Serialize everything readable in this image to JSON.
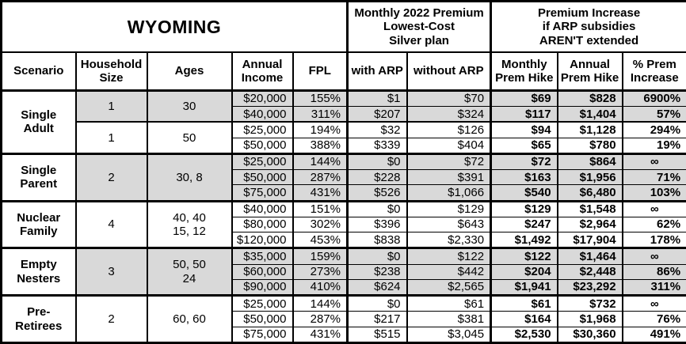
{
  "table": {
    "title": "WYOMING",
    "sections": {
      "premium": "Monthly 2022 Premium\nLowest-Cost\nSilver plan",
      "increase": "Premium Increase\nif ARP subsidies\nAREN'T extended"
    },
    "columns": [
      "Scenario",
      "Household\nSize",
      "Ages",
      "Annual\nIncome",
      "FPL",
      "with ARP",
      "without ARP",
      "Monthly\nPrem Hike",
      "Annual\nPrem Hike",
      "% Prem\nIncrease"
    ],
    "colors": {
      "shaded_row": "#d9d9d9",
      "border": "#000000",
      "background": "#ffffff"
    },
    "groups": [
      {
        "scenario": "Single\nAdult",
        "subgroups": [
          {
            "household_size": "1",
            "ages": "30",
            "shaded": true,
            "rows": [
              {
                "income": "$20,000",
                "fpl": "155%",
                "with_arp": "$1",
                "without_arp": "$70",
                "monthly_hike": "$69",
                "annual_hike": "$828",
                "pct_increase": "6900%"
              },
              {
                "income": "$40,000",
                "fpl": "311%",
                "with_arp": "$207",
                "without_arp": "$324",
                "monthly_hike": "$117",
                "annual_hike": "$1,404",
                "pct_increase": "57%"
              }
            ]
          },
          {
            "household_size": "1",
            "ages": "50",
            "shaded": false,
            "rows": [
              {
                "income": "$25,000",
                "fpl": "194%",
                "with_arp": "$32",
                "without_arp": "$126",
                "monthly_hike": "$94",
                "annual_hike": "$1,128",
                "pct_increase": "294%"
              },
              {
                "income": "$50,000",
                "fpl": "388%",
                "with_arp": "$339",
                "without_arp": "$404",
                "monthly_hike": "$65",
                "annual_hike": "$780",
                "pct_increase": "19%"
              }
            ]
          }
        ]
      },
      {
        "scenario": "Single\nParent",
        "subgroups": [
          {
            "household_size": "2",
            "ages": "30, 8",
            "shaded": true,
            "rows": [
              {
                "income": "$25,000",
                "fpl": "144%",
                "with_arp": "$0",
                "without_arp": "$72",
                "monthly_hike": "$72",
                "annual_hike": "$864",
                "pct_increase": "∞"
              },
              {
                "income": "$50,000",
                "fpl": "287%",
                "with_arp": "$228",
                "without_arp": "$391",
                "monthly_hike": "$163",
                "annual_hike": "$1,956",
                "pct_increase": "71%"
              },
              {
                "income": "$75,000",
                "fpl": "431%",
                "with_arp": "$526",
                "without_arp": "$1,066",
                "monthly_hike": "$540",
                "annual_hike": "$6,480",
                "pct_increase": "103%"
              }
            ]
          }
        ]
      },
      {
        "scenario": "Nuclear\nFamily",
        "subgroups": [
          {
            "household_size": "4",
            "ages": "40, 40\n15, 12",
            "shaded": false,
            "rows": [
              {
                "income": "$40,000",
                "fpl": "151%",
                "with_arp": "$0",
                "without_arp": "$129",
                "monthly_hike": "$129",
                "annual_hike": "$1,548",
                "pct_increase": "∞"
              },
              {
                "income": "$80,000",
                "fpl": "302%",
                "with_arp": "$396",
                "without_arp": "$643",
                "monthly_hike": "$247",
                "annual_hike": "$2,964",
                "pct_increase": "62%"
              },
              {
                "income": "$120,000",
                "fpl": "453%",
                "with_arp": "$838",
                "without_arp": "$2,330",
                "monthly_hike": "$1,492",
                "annual_hike": "$17,904",
                "pct_increase": "178%"
              }
            ]
          }
        ]
      },
      {
        "scenario": "Empty\nNesters",
        "subgroups": [
          {
            "household_size": "3",
            "ages": "50, 50\n24",
            "shaded": true,
            "rows": [
              {
                "income": "$35,000",
                "fpl": "159%",
                "with_arp": "$0",
                "without_arp": "$122",
                "monthly_hike": "$122",
                "annual_hike": "$1,464",
                "pct_increase": "∞"
              },
              {
                "income": "$60,000",
                "fpl": "273%",
                "with_arp": "$238",
                "without_arp": "$442",
                "monthly_hike": "$204",
                "annual_hike": "$2,448",
                "pct_increase": "86%"
              },
              {
                "income": "$90,000",
                "fpl": "410%",
                "with_arp": "$624",
                "without_arp": "$2,565",
                "monthly_hike": "$1,941",
                "annual_hike": "$23,292",
                "pct_increase": "311%"
              }
            ]
          }
        ]
      },
      {
        "scenario": "Pre-\nRetirees",
        "subgroups": [
          {
            "household_size": "2",
            "ages": "60, 60",
            "shaded": false,
            "rows": [
              {
                "income": "$25,000",
                "fpl": "144%",
                "with_arp": "$0",
                "without_arp": "$61",
                "monthly_hike": "$61",
                "annual_hike": "$732",
                "pct_increase": "∞"
              },
              {
                "income": "$50,000",
                "fpl": "287%",
                "with_arp": "$217",
                "without_arp": "$381",
                "monthly_hike": "$164",
                "annual_hike": "$1,968",
                "pct_increase": "76%"
              },
              {
                "income": "$75,000",
                "fpl": "431%",
                "with_arp": "$515",
                "without_arp": "$3,045",
                "monthly_hike": "$2,530",
                "annual_hike": "$30,360",
                "pct_increase": "491%"
              }
            ]
          }
        ]
      }
    ]
  }
}
